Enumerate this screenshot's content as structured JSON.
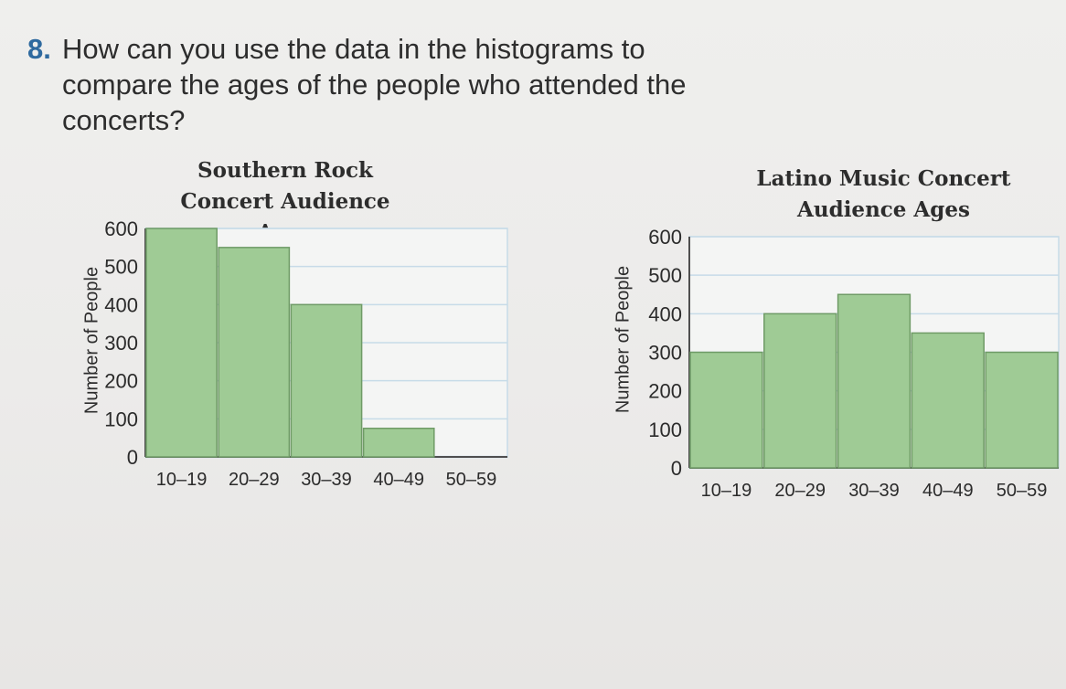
{
  "question": {
    "number": "8.",
    "text": "How can you use the data in the histograms to compare the ages of the people who attended the concerts?"
  },
  "chart_data": [
    {
      "type": "bar",
      "title": "Southern Rock Concert Audience Ages",
      "xlabel": "",
      "ylabel": "Number of People",
      "categories": [
        "10–19",
        "20–29",
        "30–39",
        "40–49",
        "50–59"
      ],
      "values": [
        600,
        550,
        400,
        75,
        0
      ],
      "ylim": [
        0,
        600
      ],
      "yticks": [
        0,
        100,
        200,
        300,
        400,
        500,
        600
      ],
      "grid": true,
      "legend": "none",
      "colors": {
        "bar_fill": "#9fcb95",
        "bar_stroke": "#6f9b66",
        "grid": "#c7dbe8"
      }
    },
    {
      "type": "bar",
      "title": "Latino Music Concert Audience Ages",
      "xlabel": "",
      "ylabel": "Number of People",
      "categories": [
        "10–19",
        "20–29",
        "30–39",
        "40–49",
        "50–59"
      ],
      "values": [
        300,
        400,
        450,
        350,
        300
      ],
      "ylim": [
        0,
        600
      ],
      "yticks": [
        0,
        100,
        200,
        300,
        400,
        500,
        600
      ],
      "grid": true,
      "legend": "none",
      "colors": {
        "bar_fill": "#9fcb95",
        "bar_stroke": "#6f9b66",
        "grid": "#c7dbe8"
      }
    }
  ]
}
